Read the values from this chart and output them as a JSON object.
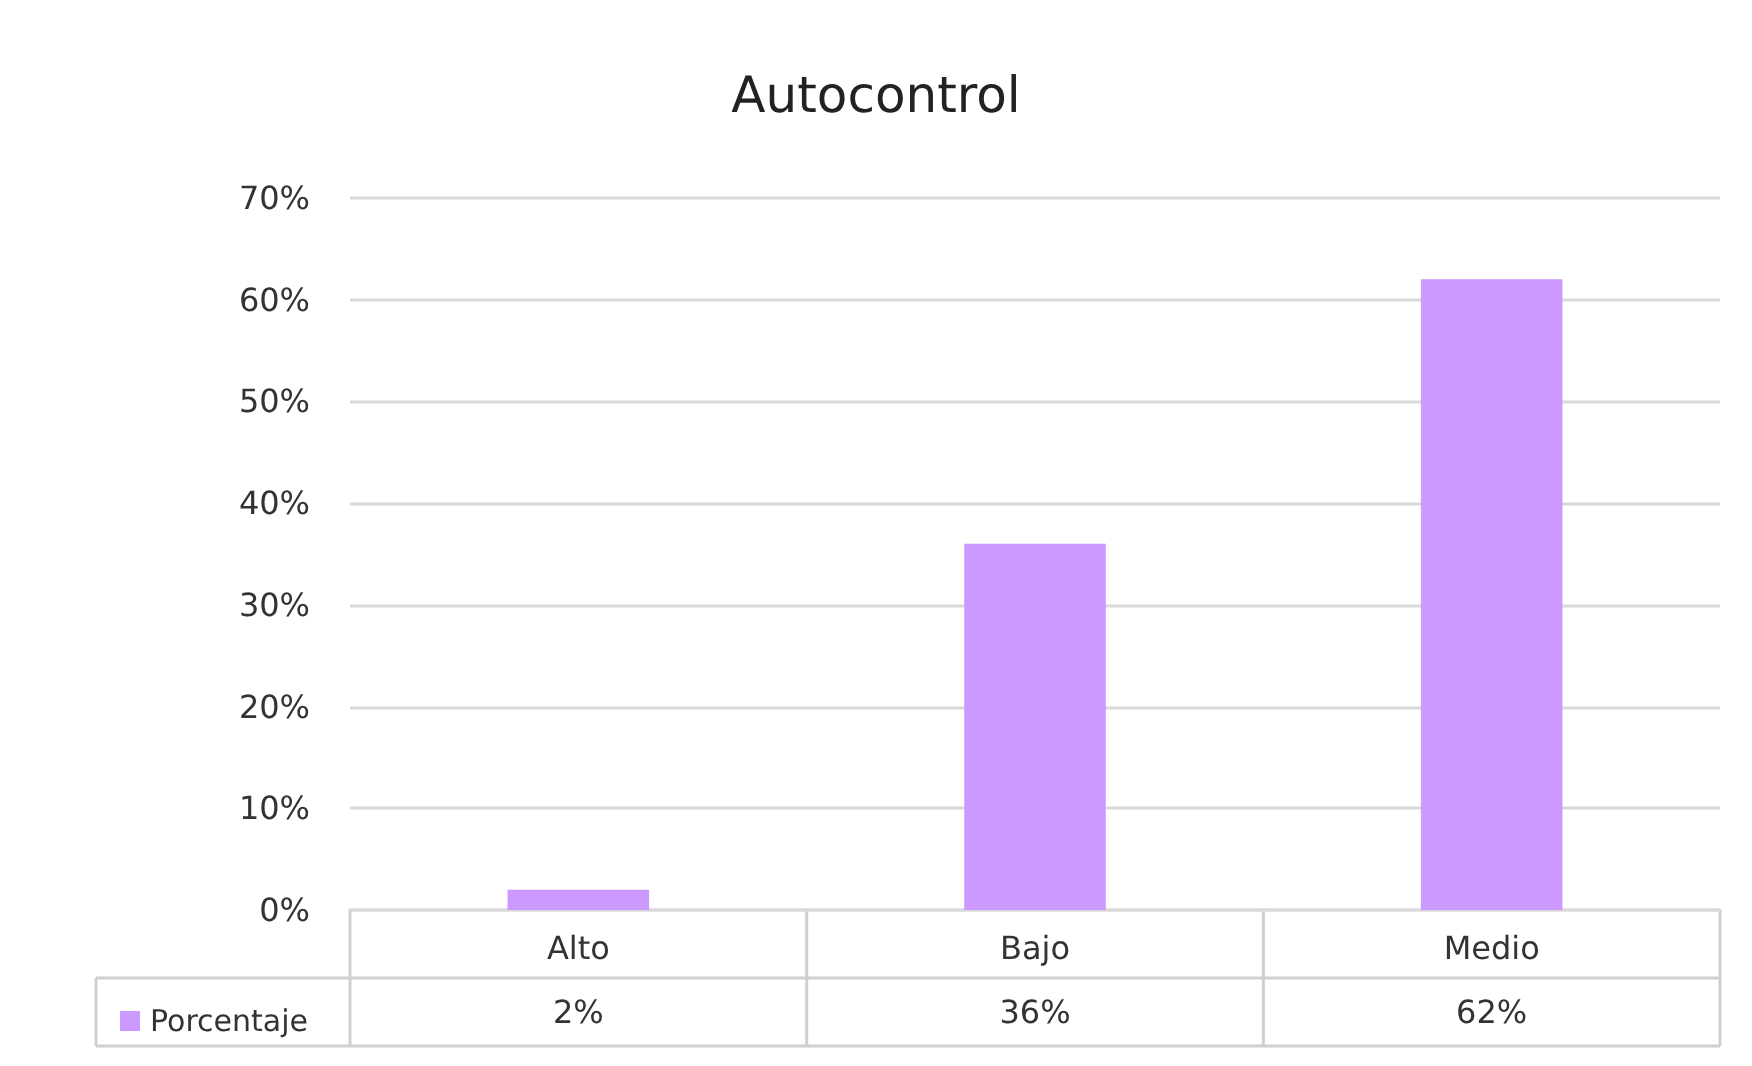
{
  "chart_data": {
    "type": "bar",
    "title": "Autocontrol",
    "categories": [
      "Alto",
      "Bajo",
      "Medio"
    ],
    "series": [
      {
        "name": "Porcentaje",
        "color": "#cc99ff",
        "values": [
          2,
          36,
          62
        ],
        "value_labels": [
          "2%",
          "36%",
          "62%"
        ]
      }
    ],
    "ylim": [
      0,
      70
    ],
    "yticks": [
      {
        "value": 0,
        "label": "0%"
      },
      {
        "value": 10,
        "label": "10%"
      },
      {
        "value": 20,
        "label": "20%"
      },
      {
        "value": 30,
        "label": "30%"
      },
      {
        "value": 40,
        "label": "40%"
      },
      {
        "value": 50,
        "label": "50%"
      },
      {
        "value": 60,
        "label": "60%"
      },
      {
        "value": 70,
        "label": "70%"
      }
    ],
    "grid": "y",
    "legend": "bottom left"
  }
}
